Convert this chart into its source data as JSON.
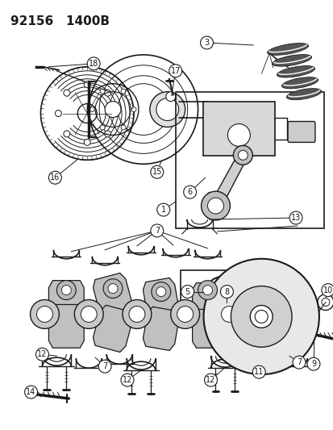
{
  "title": "92156   1400B",
  "bg": "#ffffff",
  "lc": "#1a1a1a",
  "figsize": [
    4.14,
    5.33
  ],
  "dpi": 100
}
